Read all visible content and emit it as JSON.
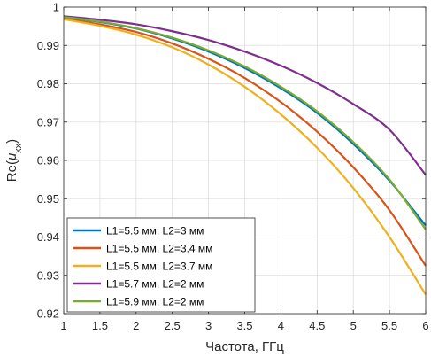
{
  "chart_data": {
    "type": "line",
    "title": "",
    "xlabel": "Частота, ГГц",
    "ylabel": "Re(μ_xx)",
    "ylabel_parts": {
      "base": "Re(",
      "mu": "μ",
      "sub": "xx",
      "close": ")"
    },
    "xlim": [
      1,
      6
    ],
    "ylim": [
      0.92,
      1.0
    ],
    "xticks": [
      1,
      1.5,
      2,
      2.5,
      3,
      3.5,
      4,
      4.5,
      5,
      5.5,
      6
    ],
    "xtick_labels": [
      "1",
      "1.5",
      "2",
      "2.5",
      "3",
      "3.5",
      "4",
      "4.5",
      "5",
      "5.5",
      "6"
    ],
    "yticks": [
      0.92,
      0.93,
      0.94,
      0.95,
      0.96,
      0.97,
      0.98,
      0.99,
      1.0
    ],
    "ytick_labels": [
      "0.92",
      "0.93",
      "0.94",
      "0.95",
      "0.96",
      "0.97",
      "0.98",
      "0.99",
      "1"
    ],
    "grid": true,
    "legend_position": "bottom-left",
    "x": [
      1,
      1.5,
      2,
      2.5,
      3,
      3.5,
      4,
      4.5,
      5,
      5.5,
      6
    ],
    "series": [
      {
        "name": "L1=5.5 мм, L2=3 мм",
        "color": "#0072BD",
        "values": [
          0.9973,
          0.9961,
          0.9944,
          0.9918,
          0.9884,
          0.9841,
          0.9788,
          0.9724,
          0.9643,
          0.9547,
          0.943
        ]
      },
      {
        "name": "L1=5.5 мм, L2=3.4 мм",
        "color": "#D95319",
        "values": [
          0.997,
          0.9955,
          0.9935,
          0.9905,
          0.9865,
          0.9815,
          0.9752,
          0.9675,
          0.9582,
          0.947,
          0.9325
        ]
      },
      {
        "name": "L1=5.5 мм, L2=3.7 мм",
        "color": "#EDB120",
        "values": [
          0.9968,
          0.9951,
          0.9928,
          0.9895,
          0.985,
          0.9792,
          0.972,
          0.9633,
          0.9528,
          0.94,
          0.925
        ]
      },
      {
        "name": "L1=5.7 мм, L2=2 мм",
        "color": "#7E2F8E",
        "values": [
          0.9976,
          0.9967,
          0.9955,
          0.9937,
          0.9914,
          0.9884,
          0.9847,
          0.9802,
          0.9747,
          0.968,
          0.9562
        ]
      },
      {
        "name": "L1=5.9 мм, L2=2 мм",
        "color": "#77AC30",
        "values": [
          0.9974,
          0.9962,
          0.9945,
          0.992,
          0.9887,
          0.9845,
          0.9792,
          0.9728,
          0.9648,
          0.955,
          0.942
        ]
      }
    ]
  }
}
